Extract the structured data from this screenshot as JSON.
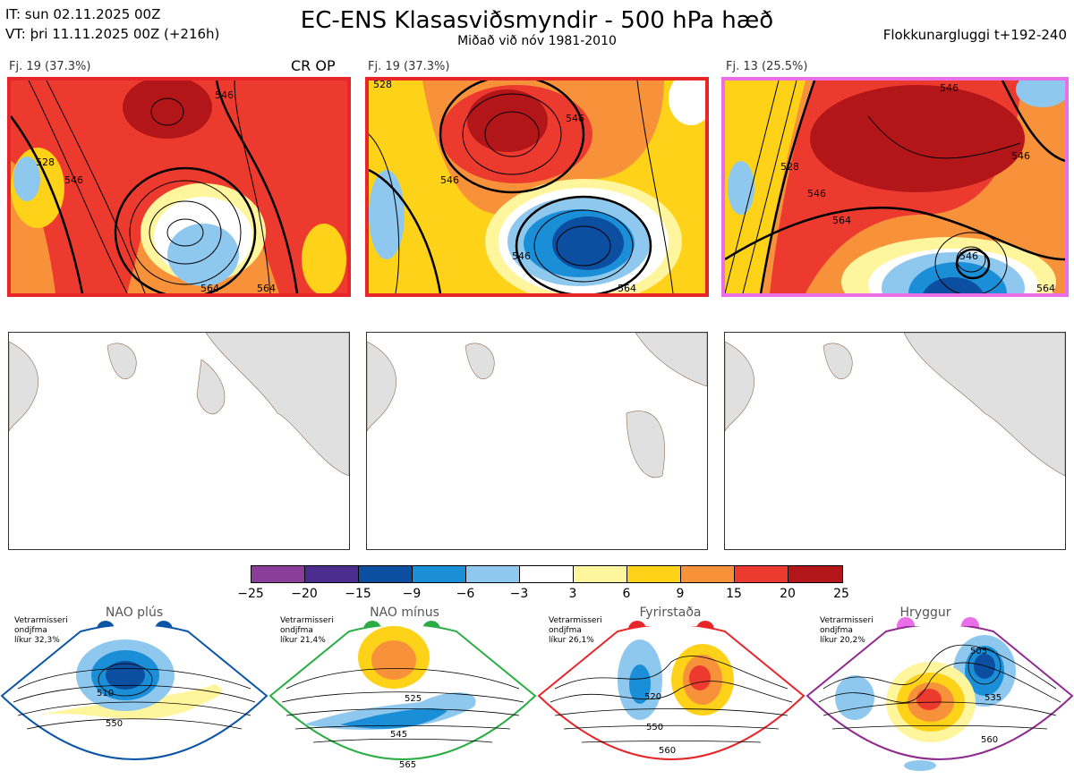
{
  "header": {
    "it_line": "IT: sun 02.11.2025 00Z",
    "vt_line": "VT: þri 11.11.2025 00Z  (+216h)",
    "title": "EC-ENS Klasasviðsmyndir - 500 hPa hæð",
    "subtitle": "Miðað við nóv 1981-2010",
    "window": "Flokkunargluggi t+192-240"
  },
  "panels": [
    {
      "label": "Fj. 19 (37.3%)",
      "tag": "CR OP",
      "border_color": "#e8262a",
      "contours": [
        "546",
        "528",
        "546",
        "564",
        "564"
      ]
    },
    {
      "label": "Fj. 19 (37.3%)",
      "tag": "",
      "border_color": "#e8262a",
      "contours": [
        "528",
        "546",
        "546",
        "546",
        "564"
      ]
    },
    {
      "label": "Fj. 13 (25.5%)",
      "tag": "",
      "border_color": "#ea6ee8",
      "contours": [
        "546",
        "528",
        "546",
        "564",
        "546",
        "546",
        "564"
      ]
    }
  ],
  "colorbar": {
    "ticks": [
      "−25",
      "−20",
      "−15",
      "−9",
      "−6",
      "−3",
      "3",
      "6",
      "9",
      "15",
      "20",
      "25"
    ],
    "colors": [
      "#8a3e9a",
      "#4b2d90",
      "#0c4ea0",
      "#1a8fd8",
      "#8fc8ee",
      "#ffffff",
      "#fff59d",
      "#ffd21a",
      "#f7913a",
      "#ec3b2e",
      "#b31619"
    ]
  },
  "regimes": [
    {
      "name": "NAO plús",
      "info": [
        "Vetrarmisseri",
        "ondjfma",
        "líkur 32,3%"
      ],
      "color": "#0a55a6",
      "labels": [
        "510",
        "550"
      ]
    },
    {
      "name": "NAO mínus",
      "info": [
        "Vetrarmisseri",
        "ondjfma",
        "líkur 21,4%"
      ],
      "color": "#2aae44",
      "labels": [
        "525",
        "545",
        "565"
      ]
    },
    {
      "name": "Fyrirstaða",
      "info": [
        "Vetrarmisseri",
        "ondjfma",
        "líkur 26,1%"
      ],
      "color": "#e8262a",
      "labels": [
        "520",
        "550",
        "560"
      ]
    },
    {
      "name": "Hryggur",
      "info": [
        "Vetrarmisseri",
        "ondjfma",
        "líkur 20,2%"
      ],
      "color": "#8e2b8e",
      "dot_color": "#ea6ee8",
      "labels": [
        "505",
        "535",
        "560"
      ]
    }
  ]
}
